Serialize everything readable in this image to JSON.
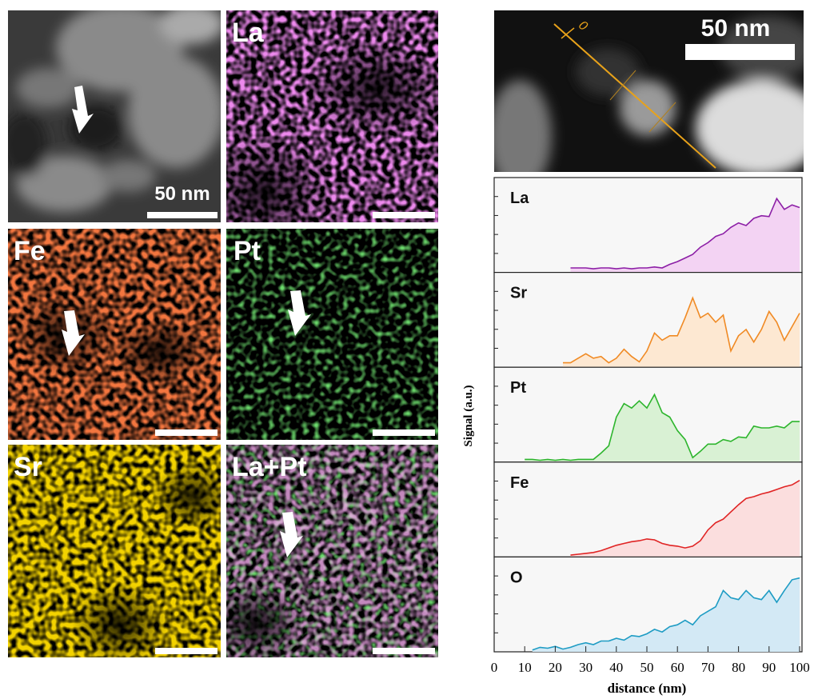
{
  "figure": {
    "map_labels": [
      "La",
      "Fe",
      "Pt",
      "Sr",
      "La+Pt"
    ],
    "map_scale_bar": "50 nm",
    "stem_scale_bar": "50 nm",
    "stem_line_start": "0"
  },
  "chart_data": {
    "type": "line",
    "ylabel": "Signal (a.u.)",
    "xlabel": "distance (nm)",
    "x": [
      0,
      2.5,
      5,
      7.5,
      10,
      12.5,
      15,
      17.5,
      20,
      22.5,
      25,
      27.5,
      30,
      32.5,
      35,
      37.5,
      40,
      42.5,
      45,
      47.5,
      50,
      52.5,
      55,
      57.5,
      60,
      62.5,
      65,
      67.5,
      70,
      72.5,
      75,
      77.5,
      80,
      82.5,
      85,
      87.5,
      90,
      92.5,
      95,
      97.5,
      100
    ],
    "xlim": [
      0,
      100
    ],
    "xticks": [
      0,
      10,
      20,
      30,
      40,
      50,
      60,
      70,
      80,
      90,
      100
    ],
    "ylim": [
      0,
      1
    ],
    "series": [
      {
        "name": "La",
        "color": "#8c1fa6",
        "fill": "#f3d3f3",
        "values": [
          null,
          null,
          null,
          null,
          null,
          null,
          null,
          null,
          null,
          null,
          0.05,
          0.05,
          0.05,
          0.04,
          0.05,
          0.05,
          0.04,
          0.05,
          0.04,
          0.05,
          0.05,
          0.06,
          0.05,
          0.09,
          0.12,
          0.16,
          0.2,
          0.28,
          0.33,
          0.4,
          0.43,
          0.5,
          0.55,
          0.52,
          0.6,
          0.63,
          0.62,
          0.82,
          0.7,
          0.75,
          0.72
        ]
      },
      {
        "name": "Sr",
        "color": "#f08a24",
        "fill": "#fde8d2",
        "values": [
          null,
          null,
          null,
          null,
          null,
          null,
          null,
          null,
          null,
          0.05,
          0.05,
          0.1,
          0.15,
          0.1,
          0.12,
          0.05,
          0.1,
          0.2,
          0.12,
          0.06,
          0.18,
          0.38,
          0.3,
          0.35,
          0.35,
          0.55,
          0.77,
          0.55,
          0.6,
          0.5,
          0.58,
          0.18,
          0.35,
          0.42,
          0.28,
          0.42,
          0.62,
          0.5,
          0.3,
          0.45,
          0.6
        ]
      },
      {
        "name": "Pt",
        "color": "#2db52d",
        "fill": "#d9f1d4",
        "values": [
          null,
          null,
          null,
          null,
          0.03,
          0.03,
          0.02,
          0.03,
          0.02,
          0.03,
          0.02,
          0.03,
          0.03,
          0.03,
          0.1,
          0.18,
          0.5,
          0.65,
          0.6,
          0.68,
          0.6,
          0.75,
          0.55,
          0.5,
          0.35,
          0.25,
          0.05,
          0.12,
          0.2,
          0.2,
          0.25,
          0.23,
          0.28,
          0.27,
          0.4,
          0.38,
          0.38,
          0.4,
          0.38,
          0.45,
          0.45
        ]
      },
      {
        "name": "Fe",
        "color": "#e02424",
        "fill": "#fbdede",
        "values": [
          null,
          null,
          null,
          null,
          null,
          null,
          null,
          null,
          null,
          null,
          0.02,
          0.03,
          0.04,
          0.05,
          0.07,
          0.1,
          0.13,
          0.15,
          0.17,
          0.18,
          0.2,
          0.19,
          0.15,
          0.13,
          0.12,
          0.1,
          0.12,
          0.18,
          0.3,
          0.38,
          0.42,
          0.5,
          0.58,
          0.65,
          0.67,
          0.7,
          0.72,
          0.75,
          0.78,
          0.8,
          0.85
        ]
      },
      {
        "name": "O",
        "color": "#1e9cc4",
        "fill": "#d3e9f5",
        "values": [
          null,
          null,
          null,
          null,
          null,
          0.02,
          0.05,
          0.04,
          0.06,
          0.03,
          0.05,
          0.08,
          0.1,
          0.08,
          0.12,
          0.12,
          0.15,
          0.13,
          0.18,
          0.17,
          0.2,
          0.25,
          0.22,
          0.28,
          0.3,
          0.35,
          0.3,
          0.4,
          0.45,
          0.5,
          0.68,
          0.6,
          0.58,
          0.68,
          0.6,
          0.58,
          0.68,
          0.55,
          0.68,
          0.8,
          0.82
        ]
      }
    ]
  }
}
